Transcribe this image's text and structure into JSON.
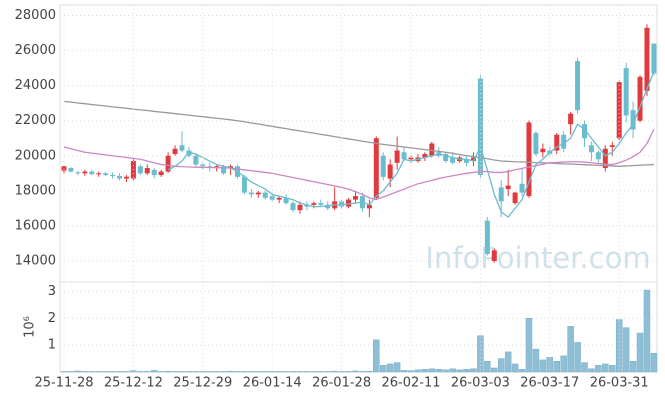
{
  "chart_data": [
    {
      "type": "candlestick",
      "watermark": "InfoPointer.com",
      "up_color": "#e0393e",
      "down_color": "#6bbccf",
      "ylim": [
        12800,
        28600
      ],
      "yticks": [
        14000,
        16000,
        18000,
        20000,
        22000,
        24000,
        26000,
        28000
      ],
      "grid": true,
      "open": [
        19150,
        19300,
        19050,
        19000,
        19100,
        18950,
        19000,
        18900,
        18850,
        18700,
        18700,
        19400,
        19000,
        19200,
        18900,
        19100,
        20100,
        20600,
        20300,
        20000,
        19500,
        19400,
        19300,
        19400,
        19300,
        19400,
        18800,
        17900,
        17800,
        17900,
        17700,
        17500,
        17600,
        17300,
        16900,
        17200,
        17200,
        17300,
        17200,
        17000,
        17400,
        17100,
        17500,
        17700,
        17000,
        17600,
        20000,
        18700,
        19600,
        20200,
        19800,
        19700,
        19900,
        20000,
        20200,
        20100,
        19900,
        19700,
        19800,
        19700,
        24400,
        16300,
        14000,
        18200,
        18100,
        17300,
        18400,
        17700,
        21300,
        20200,
        20300,
        20300,
        21200,
        21800,
        25400,
        21800,
        20600,
        20200,
        19300,
        20500,
        21000,
        25000,
        22600,
        22000,
        23700,
        26400
      ],
      "high": [
        19450,
        19350,
        19150,
        19200,
        19200,
        19100,
        19100,
        19050,
        19000,
        18900,
        19800,
        19500,
        19500,
        19300,
        19200,
        20200,
        20600,
        21400,
        20500,
        20100,
        19600,
        19600,
        19500,
        19500,
        19500,
        19500,
        18900,
        18100,
        18000,
        18000,
        17900,
        17700,
        17800,
        17400,
        17400,
        17400,
        17400,
        17500,
        17400,
        18200,
        17500,
        17600,
        18000,
        17900,
        17500,
        21100,
        20200,
        19800,
        21100,
        20500,
        20000,
        20100,
        20200,
        20800,
        20500,
        20200,
        20200,
        20000,
        20000,
        20200,
        24600,
        16500,
        14700,
        18600,
        19200,
        17950,
        19300,
        22000,
        21400,
        20700,
        20500,
        21300,
        21400,
        22500,
        25600,
        22000,
        20800,
        20300,
        20600,
        20800,
        24300,
        25300,
        23100,
        24600,
        27500,
        26400
      ],
      "low": [
        19000,
        19050,
        18900,
        18850,
        18900,
        18800,
        18850,
        18700,
        18600,
        18500,
        18600,
        18900,
        18900,
        18700,
        18800,
        19000,
        20000,
        20200,
        19900,
        19400,
        19200,
        19100,
        19100,
        18900,
        18900,
        18700,
        17800,
        17600,
        17600,
        17500,
        17400,
        17300,
        17200,
        16800,
        16700,
        16900,
        17000,
        17100,
        16900,
        16900,
        17000,
        17000,
        17300,
        16800,
        16500,
        17500,
        18600,
        18200,
        19200,
        19700,
        19600,
        19600,
        19700,
        19900,
        19900,
        19600,
        19500,
        19600,
        19400,
        19400,
        18700,
        14300,
        13900,
        16500,
        17700,
        17200,
        17700,
        17600,
        20000,
        19900,
        20000,
        20100,
        20200,
        21200,
        22400,
        20500,
        19700,
        19600,
        19100,
        20000,
        20900,
        21900,
        21000,
        21900,
        23400,
        24600
      ],
      "close": [
        19400,
        19100,
        19000,
        19100,
        18950,
        19000,
        18900,
        18850,
        18700,
        18800,
        19700,
        19000,
        19300,
        18900,
        19100,
        20000,
        20400,
        20300,
        20000,
        19500,
        19400,
        19300,
        19400,
        19000,
        19400,
        18800,
        17900,
        17800,
        17900,
        17600,
        17500,
        17600,
        17300,
        16900,
        17200,
        17100,
        17300,
        17200,
        17000,
        17400,
        17100,
        17500,
        17700,
        17000,
        17200,
        21000,
        18800,
        19500,
        20300,
        19800,
        19900,
        19900,
        20100,
        20700,
        20000,
        19700,
        19600,
        19900,
        19600,
        19900,
        18900,
        14400,
        14600,
        17400,
        18300,
        17900,
        17900,
        21900,
        20100,
        20400,
        20100,
        21200,
        20400,
        22400,
        22600,
        21000,
        20200,
        19800,
        20400,
        20600,
        24200,
        22300,
        21500,
        24500,
        27300,
        24700
      ],
      "series": [
        {
          "color": "#999999",
          "values": [
            23100,
            23060,
            23010,
            22970,
            22920,
            22880,
            22840,
            22790,
            22750,
            22710,
            22660,
            22620,
            22580,
            22530,
            22490,
            22450,
            22400,
            22360,
            22320,
            22270,
            22230,
            22180,
            22140,
            22100,
            22050,
            22000,
            21940,
            21870,
            21810,
            21740,
            21680,
            21610,
            21550,
            21480,
            21420,
            21350,
            21290,
            21220,
            21160,
            21090,
            21030,
            20960,
            20900,
            20830,
            20770,
            20700,
            20650,
            20600,
            20550,
            20500,
            20450,
            20400,
            20350,
            20300,
            20250,
            20200,
            20140,
            20070,
            20010,
            19950,
            19890,
            19830,
            19760,
            19700,
            19680,
            19660,
            19650,
            19630,
            19610,
            19600,
            19580,
            19560,
            19540,
            19530,
            19510,
            19490,
            19470,
            19460,
            19440,
            19420,
            19400,
            19420,
            19440,
            19460,
            19480,
            19500
          ]
        },
        {
          "color": "#cc88c4",
          "values": [
            20500,
            20400,
            20300,
            20200,
            20150,
            20100,
            20050,
            20000,
            19950,
            19900,
            19850,
            19800,
            19700,
            19600,
            19500,
            19450,
            19400,
            19380,
            19360,
            19350,
            19340,
            19330,
            19320,
            19310,
            19300,
            19250,
            19200,
            19150,
            19100,
            19050,
            19000,
            18920,
            18840,
            18760,
            18680,
            18600,
            18520,
            18440,
            18360,
            18280,
            18200,
            18100,
            17950,
            17800,
            17600,
            17500,
            17650,
            17800,
            17950,
            18100,
            18250,
            18400,
            18500,
            18600,
            18700,
            18780,
            18860,
            18930,
            19000,
            19050,
            19100,
            19100,
            19050,
            19050,
            19100,
            19200,
            19280,
            19360,
            19440,
            19520,
            19600,
            19620,
            19640,
            19660,
            19660,
            19640,
            19600,
            19560,
            19520,
            19500,
            19600,
            19750,
            19950,
            20200,
            20700,
            21500
          ]
        },
        {
          "color": "#6bbccf",
          "values": [
            null,
            null,
            null,
            null,
            null,
            null,
            null,
            null,
            null,
            null,
            null,
            null,
            null,
            null,
            null,
            19200,
            19400,
            19700,
            20200,
            20100,
            19900,
            19700,
            19500,
            19400,
            19300,
            19100,
            18800,
            18500,
            18300,
            18100,
            17800,
            17700,
            17600,
            17500,
            17300,
            17200,
            17100,
            17100,
            17150,
            17200,
            17200,
            17250,
            17300,
            17350,
            17200,
            17700,
            18000,
            18500,
            19000,
            19800,
            19700,
            19800,
            19900,
            20000,
            20100,
            20000,
            19900,
            19800,
            19800,
            19700,
            20500,
            19200,
            17800,
            16800,
            16500,
            17000,
            17500,
            18500,
            19500,
            19800,
            20200,
            20500,
            20700,
            21000,
            21800,
            21500,
            21000,
            20500,
            20000,
            20200,
            20700,
            21300,
            21800,
            22800,
            23800,
            24800
          ]
        }
      ]
    },
    {
      "type": "bar",
      "ylabel": "10⁶",
      "color": "#8fbfd6",
      "ylim": [
        0,
        3.35
      ],
      "yticks": [
        1,
        2,
        3
      ],
      "grid": true,
      "categories": [
        "25-11-28",
        null,
        null,
        null,
        null,
        null,
        null,
        null,
        null,
        null,
        "25-12-12",
        null,
        null,
        null,
        null,
        null,
        null,
        null,
        null,
        null,
        "25-12-29",
        null,
        null,
        null,
        null,
        null,
        null,
        null,
        null,
        null,
        "26-01-14",
        null,
        null,
        null,
        null,
        null,
        null,
        null,
        null,
        null,
        "26-01-28",
        null,
        null,
        null,
        null,
        null,
        null,
        null,
        null,
        null,
        "26-02-11",
        null,
        null,
        null,
        null,
        null,
        null,
        null,
        null,
        null,
        "26-03-03",
        null,
        null,
        null,
        null,
        null,
        null,
        null,
        null,
        null,
        "26-03-17",
        null,
        null,
        null,
        null,
        null,
        null,
        null,
        null,
        null,
        "26-03-31",
        null,
        null,
        null,
        null,
        null
      ],
      "values": [
        0.02,
        0.02,
        0.04,
        0.02,
        0.02,
        0.02,
        0.02,
        0.02,
        0.02,
        0.02,
        0.05,
        0.02,
        0.02,
        0.06,
        0.02,
        0.03,
        0.02,
        0.02,
        0.02,
        0.02,
        0.02,
        0.02,
        0.02,
        0.02,
        0.03,
        0.02,
        0.02,
        0.02,
        0.02,
        0.02,
        0.02,
        0.02,
        0.02,
        0.02,
        0.02,
        0.02,
        0.02,
        0.02,
        0.02,
        0.03,
        0.02,
        0.02,
        0.04,
        0.02,
        0.03,
        1.2,
        0.25,
        0.3,
        0.35,
        0.06,
        0.05,
        0.08,
        0.1,
        0.12,
        0.1,
        0.08,
        0.12,
        0.08,
        0.1,
        0.12,
        1.35,
        0.4,
        0.15,
        0.5,
        0.75,
        0.3,
        0.1,
        2.0,
        0.85,
        0.45,
        0.55,
        0.4,
        0.6,
        1.7,
        1.1,
        0.35,
        0.12,
        0.25,
        0.3,
        0.25,
        1.95,
        1.65,
        0.4,
        1.45,
        3.05,
        0.7
      ]
    }
  ]
}
